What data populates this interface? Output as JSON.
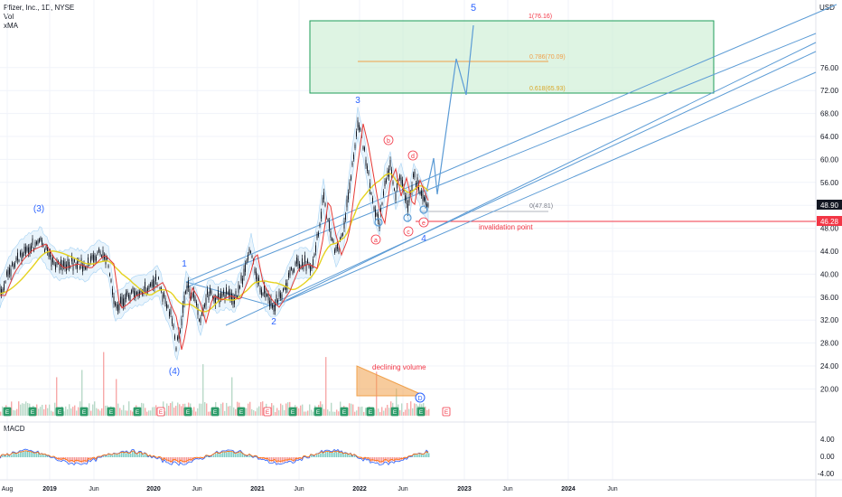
{
  "header": {
    "symbol_line": "Pfizer, Inc., 1D, NYSE",
    "indicator_vol": "Vol",
    "indicator_xma": "xMA",
    "currency": "USD"
  },
  "macd_panel": {
    "label": "MACD",
    "ticks": [
      "4.00",
      "0.00",
      "-4.00"
    ]
  },
  "price_axis": {
    "ticks": [
      "76.00",
      "72.00",
      "68.00",
      "64.00",
      "60.00",
      "56.00",
      "52.00",
      "48.00",
      "44.00",
      "40.00",
      "36.00",
      "32.00",
      "28.00",
      "24.00",
      "20.00"
    ],
    "last_price": "48.90",
    "invalidation_price": "46.28"
  },
  "time_axis": {
    "labels": [
      "Aug",
      "2019",
      "Jun",
      "2020",
      "Jun",
      "2021",
      "Jun",
      "2022",
      "Jun",
      "2023",
      "Jun",
      "2024",
      "Jun"
    ]
  },
  "annotations": {
    "wave_3_paren": "(3)",
    "wave_4_paren": "(4)",
    "wave_1": "1",
    "wave_2": "2",
    "wave_3": "3",
    "wave_4": "4",
    "wave_5": "5",
    "sub_a": "a",
    "sub_b": "b",
    "sub_c": "c",
    "sub_d": "d",
    "sub_e": "e",
    "fib_1": "1(76.16)",
    "fib_0786": "0.786(70.09)",
    "fib_0618": "0.618(65.93)",
    "fib_0": "0(47.81)",
    "invalidation": "invalidation point",
    "declining_volume": "declining volume",
    "dividend_marker": "D",
    "earnings_marker": "E"
  },
  "colors": {
    "candle": "#131722",
    "channel": "#5b9bd5",
    "target_box_fill": "#c8ecd0",
    "target_box_stroke": "#1e9c5a",
    "fib_line": "#f0a04b",
    "invalidation": "#f23645",
    "ma_red": "#e53935",
    "ma_yellow": "#e5d21f",
    "envelope": "#a7d3f4",
    "earnings_green": "#2e9c6a",
    "macd_line": "#2962ff",
    "signal_line": "#ff6d00"
  }
}
